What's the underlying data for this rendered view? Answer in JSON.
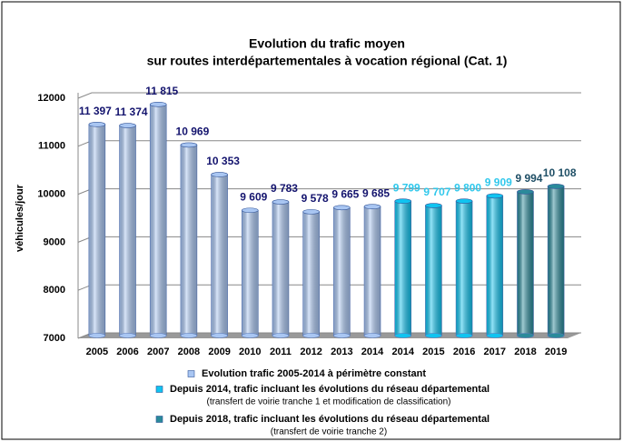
{
  "chart_data": {
    "type": "bar",
    "title": [
      "Evolution du trafic moyen",
      "sur routes interdépartementales à vocation régional (Cat. 1)"
    ],
    "y_label": "véhicules/jour",
    "categories": [
      "2005",
      "2006",
      "2007",
      "2008",
      "2009",
      "2010",
      "2011",
      "2012",
      "2013",
      "2014",
      "2014",
      "2015",
      "2016",
      "2017",
      "2018",
      "2019"
    ],
    "ylim": [
      7000,
      12000
    ],
    "yticks": [
      7000,
      8000,
      9000,
      10000,
      11000,
      12000
    ],
    "grid": true,
    "series": [
      {
        "name": "Evolution trafic 2005-2014 à périmètre constant",
        "color": "#a9c6f2",
        "label_color": "#14146e",
        "values": [
          11397,
          11374,
          11815,
          10969,
          10353,
          9609,
          9783,
          9578,
          9665,
          9685,
          null,
          null,
          null,
          null,
          null,
          null
        ],
        "value_labels": [
          "11 397",
          "11 374",
          "11 815",
          "10 969",
          "10 353",
          "9 609",
          "9 783",
          "9 578",
          "9 665",
          "9 685",
          null,
          null,
          null,
          null,
          null,
          null
        ]
      },
      {
        "name": "Depuis 2014, trafic incluant les évolutions du réseau départemental",
        "note": "(transfert de voirie tranche 1 et modification de classification)",
        "color": "#10c4f0",
        "label_color": "#30c8ec",
        "values": [
          null,
          null,
          null,
          null,
          null,
          null,
          null,
          null,
          null,
          null,
          9799,
          9707,
          9800,
          9909,
          null,
          null
        ],
        "value_labels": [
          null,
          null,
          null,
          null,
          null,
          null,
          null,
          null,
          null,
          null,
          "9 799",
          "9 707",
          "9 800",
          "9 909",
          null,
          null
        ]
      },
      {
        "name": "Depuis 2018, trafic incluant les évolutions du réseau départemental",
        "note": "(transfert de voirie tranche 2)",
        "color": "#2a8a9a",
        "label_color": "#1f4f66",
        "values": [
          null,
          null,
          null,
          null,
          null,
          null,
          null,
          null,
          null,
          null,
          null,
          null,
          null,
          null,
          9994,
          10108
        ],
        "value_labels": [
          null,
          null,
          null,
          null,
          null,
          null,
          null,
          null,
          null,
          null,
          null,
          null,
          null,
          null,
          "9 994",
          "10 108"
        ]
      }
    ]
  }
}
